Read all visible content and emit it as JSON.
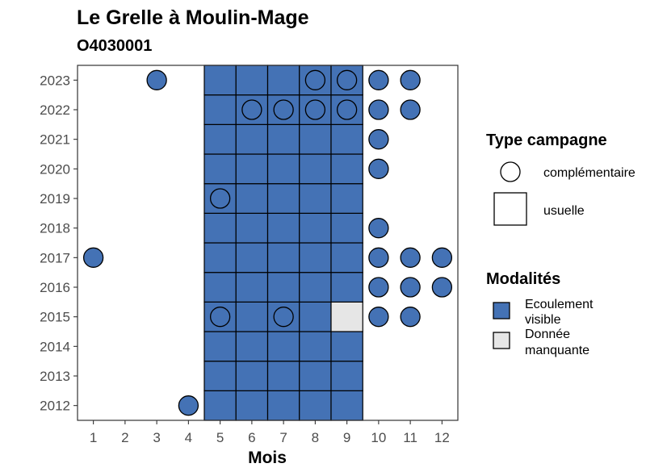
{
  "chart_data": {
    "type": "heatmap",
    "title": "Le Grelle à Moulin-Mage",
    "subtitle": "O4030001",
    "xlabel": "Mois",
    "ylabel": "",
    "x_ticks": [
      1,
      2,
      3,
      4,
      5,
      6,
      7,
      8,
      9,
      10,
      11,
      12
    ],
    "y_ticks": [
      2012,
      2013,
      2014,
      2015,
      2016,
      2017,
      2018,
      2019,
      2020,
      2021,
      2022,
      2023
    ],
    "xlim": [
      0.5,
      12.5
    ],
    "ylim": [
      2011.5,
      2023.5
    ],
    "grid": false,
    "colors": {
      "Ecoulement visible": "#4472b5",
      "Donnée manquante": "#e6e6e6"
    },
    "legend_type": {
      "title": "Type campagne",
      "entries": [
        {
          "label": "complémentaire",
          "shape": "circle"
        },
        {
          "label": "usuelle",
          "shape": "square"
        }
      ]
    },
    "legend_modalites": {
      "title": "Modalités",
      "entries": [
        {
          "label_lines": [
            "Ecoulement",
            "visible"
          ],
          "value": "Ecoulement visible"
        },
        {
          "label_lines": [
            "Donnée",
            "manquante"
          ],
          "value": "Donnée manquante"
        }
      ]
    },
    "usuelle": [
      {
        "year": 2012,
        "values": {
          "5": "Ecoulement visible",
          "6": "Ecoulement visible",
          "7": "Ecoulement visible",
          "8": "Ecoulement visible",
          "9": "Ecoulement visible"
        }
      },
      {
        "year": 2013,
        "values": {
          "5": "Ecoulement visible",
          "6": "Ecoulement visible",
          "7": "Ecoulement visible",
          "8": "Ecoulement visible",
          "9": "Ecoulement visible"
        }
      },
      {
        "year": 2014,
        "values": {
          "5": "Ecoulement visible",
          "6": "Ecoulement visible",
          "7": "Ecoulement visible",
          "8": "Ecoulement visible",
          "9": "Ecoulement visible"
        }
      },
      {
        "year": 2015,
        "values": {
          "5": "Ecoulement visible",
          "6": "Ecoulement visible",
          "7": "Ecoulement visible",
          "8": "Ecoulement visible",
          "9": "Donnée manquante"
        }
      },
      {
        "year": 2016,
        "values": {
          "5": "Ecoulement visible",
          "6": "Ecoulement visible",
          "7": "Ecoulement visible",
          "8": "Ecoulement visible",
          "9": "Ecoulement visible"
        }
      },
      {
        "year": 2017,
        "values": {
          "5": "Ecoulement visible",
          "6": "Ecoulement visible",
          "7": "Ecoulement visible",
          "8": "Ecoulement visible",
          "9": "Ecoulement visible"
        }
      },
      {
        "year": 2018,
        "values": {
          "5": "Ecoulement visible",
          "6": "Ecoulement visible",
          "7": "Ecoulement visible",
          "8": "Ecoulement visible",
          "9": "Ecoulement visible"
        }
      },
      {
        "year": 2019,
        "values": {
          "5": "Ecoulement visible",
          "6": "Ecoulement visible",
          "7": "Ecoulement visible",
          "8": "Ecoulement visible",
          "9": "Ecoulement visible"
        }
      },
      {
        "year": 2020,
        "values": {
          "5": "Ecoulement visible",
          "6": "Ecoulement visible",
          "7": "Ecoulement visible",
          "8": "Ecoulement visible",
          "9": "Ecoulement visible"
        }
      },
      {
        "year": 2021,
        "values": {
          "5": "Ecoulement visible",
          "6": "Ecoulement visible",
          "7": "Ecoulement visible",
          "8": "Ecoulement visible",
          "9": "Ecoulement visible"
        }
      },
      {
        "year": 2022,
        "values": {
          "5": "Ecoulement visible",
          "6": "Ecoulement visible",
          "7": "Ecoulement visible",
          "8": "Ecoulement visible",
          "9": "Ecoulement visible"
        }
      },
      {
        "year": 2023,
        "values": {
          "5": "Ecoulement visible",
          "6": "Ecoulement visible",
          "7": "Ecoulement visible",
          "8": "Ecoulement visible",
          "9": "Ecoulement visible"
        }
      }
    ],
    "complementaire": [
      {
        "year": 2012,
        "month": 4,
        "value": "Ecoulement visible"
      },
      {
        "year": 2015,
        "month": 5,
        "value": "Ecoulement visible"
      },
      {
        "year": 2015,
        "month": 7,
        "value": "Ecoulement visible"
      },
      {
        "year": 2015,
        "month": 10,
        "value": "Ecoulement visible"
      },
      {
        "year": 2015,
        "month": 11,
        "value": "Ecoulement visible"
      },
      {
        "year": 2016,
        "month": 10,
        "value": "Ecoulement visible"
      },
      {
        "year": 2016,
        "month": 11,
        "value": "Ecoulement visible"
      },
      {
        "year": 2016,
        "month": 12,
        "value": "Ecoulement visible"
      },
      {
        "year": 2017,
        "month": 1,
        "value": "Ecoulement visible"
      },
      {
        "year": 2017,
        "month": 10,
        "value": "Ecoulement visible"
      },
      {
        "year": 2017,
        "month": 11,
        "value": "Ecoulement visible"
      },
      {
        "year": 2017,
        "month": 12,
        "value": "Ecoulement visible"
      },
      {
        "year": 2018,
        "month": 10,
        "value": "Ecoulement visible"
      },
      {
        "year": 2019,
        "month": 5,
        "value": "Ecoulement visible"
      },
      {
        "year": 2020,
        "month": 10,
        "value": "Ecoulement visible"
      },
      {
        "year": 2021,
        "month": 10,
        "value": "Ecoulement visible"
      },
      {
        "year": 2022,
        "month": 6,
        "value": "Ecoulement visible"
      },
      {
        "year": 2022,
        "month": 7,
        "value": "Ecoulement visible"
      },
      {
        "year": 2022,
        "month": 8,
        "value": "Ecoulement visible"
      },
      {
        "year": 2022,
        "month": 9,
        "value": "Ecoulement visible"
      },
      {
        "year": 2022,
        "month": 10,
        "value": "Ecoulement visible"
      },
      {
        "year": 2022,
        "month": 11,
        "value": "Ecoulement visible"
      },
      {
        "year": 2023,
        "month": 3,
        "value": "Ecoulement visible"
      },
      {
        "year": 2023,
        "month": 8,
        "value": "Ecoulement visible"
      },
      {
        "year": 2023,
        "month": 9,
        "value": "Ecoulement visible"
      },
      {
        "year": 2023,
        "month": 10,
        "value": "Ecoulement visible"
      },
      {
        "year": 2023,
        "month": 11,
        "value": "Ecoulement visible"
      }
    ]
  }
}
